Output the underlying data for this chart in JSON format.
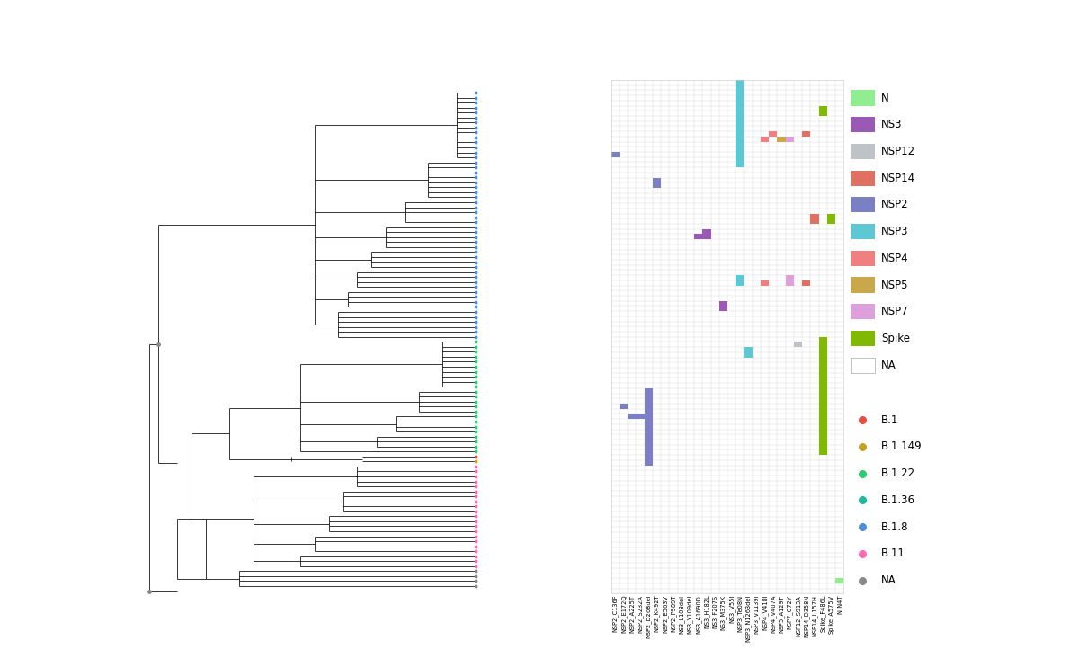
{
  "heatmap_columns": [
    "NSP2_C136F",
    "NSP2_E172Q",
    "NSP2_A225T",
    "NSP2_S232A",
    "NSP2_D268del",
    "NSP2_K492T",
    "NSP2_E563V",
    "NSP2_P589T",
    "NS3_L108del",
    "NS3_Y109del",
    "NS3_A1690D",
    "NS3_H182L",
    "NS3_F207S",
    "NS3_M375K",
    "NS3_V55I",
    "NSP3_Te08N",
    "NSP3_N1263del",
    "NSP3_V1139I",
    "NSP4_V418I",
    "NSP4_V407A",
    "NSP5_A129T",
    "NSP7_C72Y",
    "NSP12_S913A",
    "NSP14_D358N",
    "NSP14_L157H",
    "Spike_F486L",
    "Spike_A575V",
    "N_N4T"
  ],
  "prot_hex": {
    "NSP2": "#7B7FC4",
    "NS3": "#9B59B6",
    "NSP3": "#5BC8D4",
    "NSP4": "#F08080",
    "NSP5": "#C8A84B",
    "NSP7": "#DDA0DD",
    "NSP12": "#BDC3C7",
    "NSP14": "#E07060",
    "Spike": "#7FBA00",
    "N": "#90EE90"
  },
  "legend_proteins": [
    "N",
    "NS3",
    "NSP12",
    "NSP14",
    "NSP2",
    "NSP3",
    "NSP4",
    "NSP5",
    "NSP7",
    "Spike",
    "NA"
  ],
  "legend_protein_colors": [
    "#90EE90",
    "#9B59B6",
    "#BDC3C7",
    "#E07060",
    "#7B7FC4",
    "#5BC8D4",
    "#F08080",
    "#C8A84B",
    "#DDA0DD",
    "#7FBA00",
    "#FFFFFF"
  ],
  "legend_clades": [
    "B.1",
    "B.1.149",
    "B.1.22",
    "B.1.36",
    "B.1.8",
    "B.11",
    "NA"
  ],
  "legend_clade_colors": [
    "#E74C3C",
    "#C8A020",
    "#2ECC71",
    "#1ABC9C",
    "#4A90D9",
    "#FF69B4",
    "#888888"
  ],
  "clade_dot_colors": {
    "B.1.8": "#4A90D9",
    "B.1.22": "#2ECC71",
    "B.1.36": "#1ABC9C",
    "B.1": "#E74C3C",
    "B.1.149": "#C8A020",
    "B.11": "#FF69B4",
    "NA": "#888888"
  },
  "background_color": "#FFFFFF",
  "grid_color": "#CCCCCC"
}
